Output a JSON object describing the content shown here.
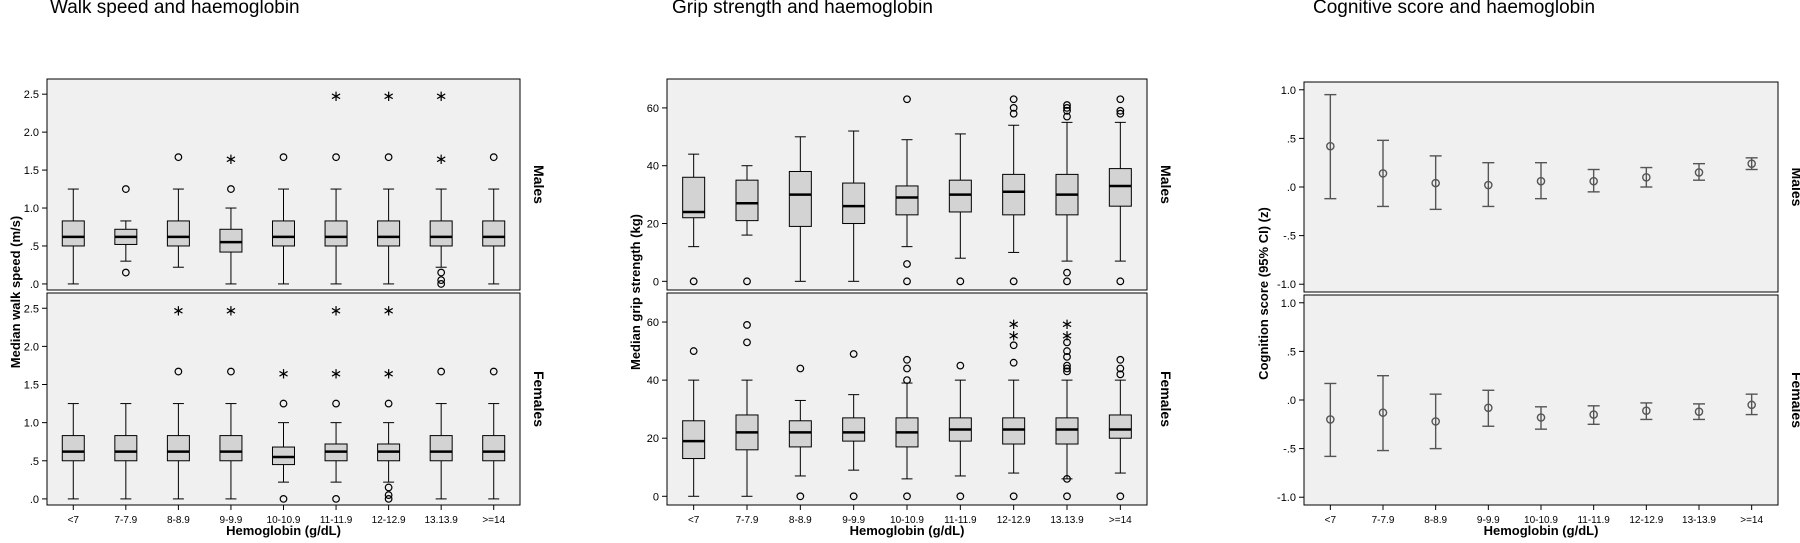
{
  "chart_data": [
    {
      "type": "box",
      "title": "Walk speed and haemoglobin",
      "xlabel": "Hemoglobin (g/dL)",
      "ylabel": "Median walk speed (m/s)",
      "categories": [
        "<7",
        "7-7.9",
        "8-8.9",
        "9-9.9",
        "10-10.9",
        "11-11.9",
        "12-12.9",
        "13.13.9",
        ">=14"
      ],
      "yticks": [
        0,
        0.5,
        1.0,
        1.5,
        2.0,
        2.5
      ],
      "ytick_labels": [
        ".0",
        ".5",
        "1.0",
        "1.5",
        "2.0",
        "2.5"
      ],
      "ylim": [
        -0.08,
        2.7
      ],
      "panels": [
        {
          "label": "Males",
          "boxes": [
            {
              "min": 0,
              "q1": 0.5,
              "median": 0.62,
              "q3": 0.83,
              "max": 1.25,
              "outliers": [],
              "extremes": []
            },
            {
              "min": 0.3,
              "q1": 0.52,
              "median": 0.62,
              "q3": 0.72,
              "max": 0.83,
              "outliers": [
                0.15,
                1.25
              ],
              "extremes": []
            },
            {
              "min": 0.22,
              "q1": 0.5,
              "median": 0.62,
              "q3": 0.83,
              "max": 1.25,
              "outliers": [
                1.67
              ],
              "extremes": []
            },
            {
              "min": 0,
              "q1": 0.42,
              "median": 0.55,
              "q3": 0.72,
              "max": 1.0,
              "outliers": [
                1.25
              ],
              "extremes": [
                1.67
              ]
            },
            {
              "min": 0,
              "q1": 0.5,
              "median": 0.62,
              "q3": 0.83,
              "max": 1.25,
              "outliers": [
                1.67
              ],
              "extremes": []
            },
            {
              "min": 0,
              "q1": 0.5,
              "median": 0.62,
              "q3": 0.83,
              "max": 1.25,
              "outliers": [
                1.67
              ],
              "extremes": [
                2.5
              ]
            },
            {
              "min": 0,
              "q1": 0.5,
              "median": 0.62,
              "q3": 0.83,
              "max": 1.25,
              "outliers": [
                1.67
              ],
              "extremes": [
                2.5
              ]
            },
            {
              "min": 0.22,
              "q1": 0.5,
              "median": 0.62,
              "q3": 0.83,
              "max": 1.25,
              "outliers": [
                0,
                0.05,
                0.15
              ],
              "extremes": [
                1.67,
                2.5
              ]
            },
            {
              "min": 0,
              "q1": 0.5,
              "median": 0.62,
              "q3": 0.83,
              "max": 1.25,
              "outliers": [
                1.67
              ],
              "extremes": []
            }
          ]
        },
        {
          "label": "Females",
          "boxes": [
            {
              "min": 0,
              "q1": 0.5,
              "median": 0.62,
              "q3": 0.83,
              "max": 1.25,
              "outliers": [],
              "extremes": []
            },
            {
              "min": 0,
              "q1": 0.5,
              "median": 0.62,
              "q3": 0.83,
              "max": 1.25,
              "outliers": [],
              "extremes": []
            },
            {
              "min": 0,
              "q1": 0.5,
              "median": 0.62,
              "q3": 0.83,
              "max": 1.25,
              "outliers": [
                1.67
              ],
              "extremes": [
                2.5
              ]
            },
            {
              "min": 0,
              "q1": 0.5,
              "median": 0.62,
              "q3": 0.83,
              "max": 1.25,
              "outliers": [
                1.67
              ],
              "extremes": [
                2.5
              ]
            },
            {
              "min": 0.22,
              "q1": 0.45,
              "median": 0.55,
              "q3": 0.68,
              "max": 1.0,
              "outliers": [
                0,
                1.25
              ],
              "extremes": [
                1.67
              ]
            },
            {
              "min": 0.22,
              "q1": 0.5,
              "median": 0.62,
              "q3": 0.72,
              "max": 1.0,
              "outliers": [
                0,
                1.25
              ],
              "extremes": [
                1.67,
                2.5
              ]
            },
            {
              "min": 0.22,
              "q1": 0.5,
              "median": 0.62,
              "q3": 0.72,
              "max": 1.0,
              "outliers": [
                0,
                0.05,
                0.15,
                1.25
              ],
              "extremes": [
                1.67,
                2.5
              ]
            },
            {
              "min": 0,
              "q1": 0.5,
              "median": 0.62,
              "q3": 0.83,
              "max": 1.25,
              "outliers": [
                1.67
              ],
              "extremes": []
            },
            {
              "min": 0,
              "q1": 0.5,
              "median": 0.62,
              "q3": 0.83,
              "max": 1.25,
              "outliers": [
                1.67
              ],
              "extremes": []
            }
          ]
        }
      ]
    },
    {
      "type": "box",
      "title": "Grip strength and haemoglobin",
      "xlabel": "Hemoglobin (g/dL)",
      "ylabel": "Median grip strength (kg)",
      "categories": [
        "<7",
        "7-7.9",
        "8-8.9",
        "9-9.9",
        "10-10.9",
        "11-11.9",
        "12-12.9",
        "13.13.9",
        ">=14"
      ],
      "yticks": [
        0,
        20,
        40,
        60
      ],
      "ytick_labels": [
        "0",
        "20",
        "40",
        "60"
      ],
      "ylim": [
        -3,
        70
      ],
      "panels": [
        {
          "label": "Males",
          "boxes": [
            {
              "min": 12,
              "q1": 22,
              "median": 24,
              "q3": 36,
              "max": 44,
              "outliers": [
                0
              ],
              "extremes": []
            },
            {
              "min": 16,
              "q1": 21,
              "median": 27,
              "q3": 35,
              "max": 40,
              "outliers": [
                0
              ],
              "extremes": []
            },
            {
              "min": 0,
              "q1": 19,
              "median": 30,
              "q3": 38,
              "max": 50,
              "outliers": [],
              "extremes": []
            },
            {
              "min": 0,
              "q1": 20,
              "median": 26,
              "q3": 34,
              "max": 52,
              "outliers": [],
              "extremes": []
            },
            {
              "min": 12,
              "q1": 23,
              "median": 29,
              "q3": 33,
              "max": 49,
              "outliers": [
                0,
                6,
                63
              ],
              "extremes": []
            },
            {
              "min": 8,
              "q1": 24,
              "median": 30,
              "q3": 35,
              "max": 51,
              "outliers": [
                0
              ],
              "extremes": []
            },
            {
              "min": 10,
              "q1": 23,
              "median": 31,
              "q3": 37,
              "max": 54,
              "outliers": [
                0,
                58,
                60,
                63
              ],
              "extremes": []
            },
            {
              "min": 7,
              "q1": 23,
              "median": 30,
              "q3": 37,
              "max": 55,
              "outliers": [
                0,
                3,
                57,
                59,
                60,
                61
              ],
              "extremes": []
            },
            {
              "min": 7,
              "q1": 26,
              "median": 33,
              "q3": 39,
              "max": 55,
              "outliers": [
                0,
                58,
                59,
                63
              ],
              "extremes": []
            }
          ]
        },
        {
          "label": "Females",
          "boxes": [
            {
              "min": 0,
              "q1": 13,
              "median": 19,
              "q3": 26,
              "max": 40,
              "outliers": [
                50
              ],
              "extremes": []
            },
            {
              "min": 0,
              "q1": 16,
              "median": 22,
              "q3": 28,
              "max": 40,
              "outliers": [
                53,
                59
              ],
              "extremes": []
            },
            {
              "min": 7,
              "q1": 17,
              "median": 22,
              "q3": 26,
              "max": 33,
              "outliers": [
                0,
                44
              ],
              "extremes": []
            },
            {
              "min": 9,
              "q1": 19,
              "median": 22,
              "q3": 27,
              "max": 35,
              "outliers": [
                0,
                49
              ],
              "extremes": []
            },
            {
              "min": 6,
              "q1": 17,
              "median": 22,
              "q3": 27,
              "max": 39,
              "outliers": [
                0,
                40,
                44,
                47
              ],
              "extremes": []
            },
            {
              "min": 7,
              "q1": 19,
              "median": 23,
              "q3": 27,
              "max": 40,
              "outliers": [
                0,
                45
              ],
              "extremes": []
            },
            {
              "min": 8,
              "q1": 18,
              "median": 23,
              "q3": 27,
              "max": 40,
              "outliers": [
                0,
                46,
                52
              ],
              "extremes": [
                56,
                60
              ]
            },
            {
              "min": 6,
              "q1": 18,
              "median": 23,
              "q3": 27,
              "max": 40,
              "outliers": [
                0,
                6,
                43,
                44,
                45,
                48,
                50,
                53
              ],
              "extremes": [
                56,
                60
              ]
            },
            {
              "min": 8,
              "q1": 20,
              "median": 23,
              "q3": 28,
              "max": 40,
              "outliers": [
                0,
                42,
                44,
                47
              ],
              "extremes": []
            }
          ]
        }
      ]
    },
    {
      "type": "errorbar",
      "title": "Cognitive score and haemoglobin",
      "xlabel": "Hemoglobin (g/dL)",
      "ylabel": "Cognition score (95% CI) (z)",
      "categories": [
        "<7",
        "7-7.9",
        "8-8.9",
        "9-9.9",
        "10-10.9",
        "11-11.9",
        "12-12.9",
        "13-13.9",
        ">=14"
      ],
      "yticks": [
        -1.0,
        -0.5,
        0,
        0.5,
        1.0
      ],
      "ytick_labels": [
        "-1.0",
        "-.5",
        ".0",
        ".5",
        "1.0"
      ],
      "ylim": [
        -1.08,
        1.08
      ],
      "panels": [
        {
          "label": "Males",
          "points": [
            {
              "mean": 0.42,
              "lo": -0.12,
              "hi": 0.95
            },
            {
              "mean": 0.14,
              "lo": -0.2,
              "hi": 0.48
            },
            {
              "mean": 0.04,
              "lo": -0.23,
              "hi": 0.32
            },
            {
              "mean": 0.02,
              "lo": -0.2,
              "hi": 0.25
            },
            {
              "mean": 0.06,
              "lo": -0.12,
              "hi": 0.25
            },
            {
              "mean": 0.06,
              "lo": -0.05,
              "hi": 0.18
            },
            {
              "mean": 0.1,
              "lo": 0.0,
              "hi": 0.2
            },
            {
              "mean": 0.15,
              "lo": 0.07,
              "hi": 0.24
            },
            {
              "mean": 0.24,
              "lo": 0.18,
              "hi": 0.3
            }
          ]
        },
        {
          "label": "Females",
          "points": [
            {
              "mean": -0.2,
              "lo": -0.58,
              "hi": 0.17
            },
            {
              "mean": -0.13,
              "lo": -0.52,
              "hi": 0.25
            },
            {
              "mean": -0.22,
              "lo": -0.5,
              "hi": 0.06
            },
            {
              "mean": -0.08,
              "lo": -0.27,
              "hi": 0.1
            },
            {
              "mean": -0.18,
              "lo": -0.3,
              "hi": -0.07
            },
            {
              "mean": -0.15,
              "lo": -0.25,
              "hi": -0.06
            },
            {
              "mean": -0.11,
              "lo": -0.2,
              "hi": -0.03
            },
            {
              "mean": -0.12,
              "lo": -0.2,
              "hi": -0.04
            },
            {
              "mean": -0.05,
              "lo": -0.15,
              "hi": 0.06
            }
          ]
        }
      ]
    }
  ],
  "colors": {
    "panel_bg": "#f0f0f0",
    "box_fill": "#d3d3d3",
    "line": "#000000",
    "errorbar": "#555555"
  }
}
